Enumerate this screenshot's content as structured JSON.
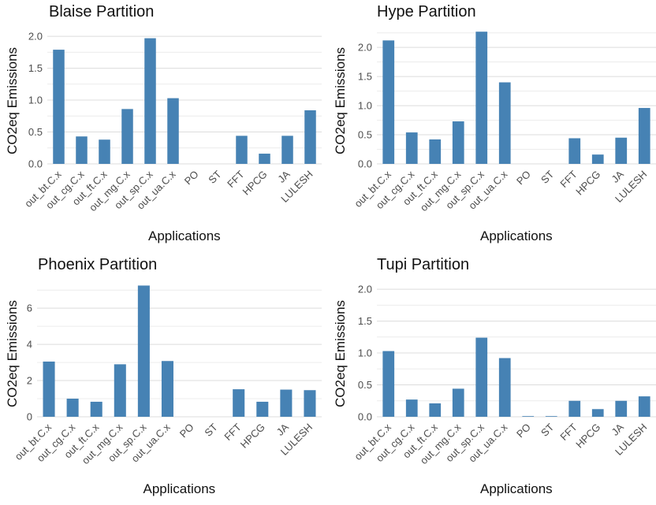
{
  "chart_data": [
    {
      "type": "bar",
      "title": "Blaise Partition",
      "xlabel": "Applications",
      "ylabel": "CO2eq Emissions",
      "categories": [
        "out_bt.C.x",
        "out_cg.C.x",
        "out_ft.C.x",
        "out_mg.C.x",
        "out_sp.C.x",
        "out_ua.C.x",
        "PO",
        "ST",
        "FFT",
        "HPCG",
        "JA",
        "LULESH"
      ],
      "values": [
        1.79,
        0.43,
        0.38,
        0.86,
        1.97,
        1.03,
        0,
        0,
        0.44,
        0.16,
        0.44,
        0.84
      ],
      "ylim": [
        0,
        2.1
      ],
      "yticks": [
        0.0,
        0.5,
        1.0,
        1.5,
        2.0
      ],
      "ytick_labels": [
        "0.0",
        "0.5",
        "1.0",
        "1.5",
        "2.0"
      ],
      "color": "#4682B4",
      "grid": true
    },
    {
      "type": "bar",
      "title": "Hype Partition",
      "xlabel": "Applications",
      "ylabel": "CO2eq Emissions",
      "categories": [
        "out_bt.C.x",
        "out_cg.C.x",
        "out_ft.C.x",
        "out_mg.C.x",
        "out_sp.C.x",
        "out_ua.C.x",
        "PO",
        "ST",
        "FFT",
        "HPCG",
        "JA",
        "LULESH"
      ],
      "values": [
        2.12,
        0.54,
        0.42,
        0.73,
        2.27,
        1.4,
        0,
        0,
        0.44,
        0.16,
        0.45,
        0.96
      ],
      "ylim": [
        0,
        2.3
      ],
      "yticks": [
        0.0,
        0.5,
        1.0,
        1.5,
        2.0
      ],
      "ytick_labels": [
        "0.0",
        "0.5",
        "1.0",
        "1.5",
        "2.0"
      ],
      "color": "#4682B4",
      "grid": true
    },
    {
      "type": "bar",
      "title": "Phoenix Partition",
      "xlabel": "Applications",
      "ylabel": "CO2eq Emissions",
      "categories": [
        "out_bt.C.x",
        "out_cg.C.x",
        "out_ft.C.x",
        "out_mg.C.x",
        "out_sp.C.x",
        "out_ua.C.x",
        "PO",
        "ST",
        "FFT",
        "HPCG",
        "JA",
        "LULESH"
      ],
      "values": [
        3.05,
        1.0,
        0.83,
        2.9,
        7.25,
        3.08,
        0,
        0,
        1.52,
        0.83,
        1.5,
        1.47
      ],
      "ylim": [
        0,
        7.4
      ],
      "yticks": [
        0,
        2,
        4,
        6
      ],
      "ytick_labels": [
        "0",
        "2",
        "4",
        "6"
      ],
      "color": "#4682B4",
      "grid": true
    },
    {
      "type": "bar",
      "title": "Tupi Partition",
      "xlabel": "Applications",
      "ylabel": "CO2eq Emissions",
      "categories": [
        "out_bt.C.x",
        "out_cg.C.x",
        "out_ft.C.x",
        "out_mg.C.x",
        "out_sp.C.x",
        "out_ua.C.x",
        "PO",
        "ST",
        "FFT",
        "HPCG",
        "JA",
        "LULESH"
      ],
      "values": [
        1.03,
        0.27,
        0.21,
        0.44,
        1.24,
        0.92,
        0.01,
        0.01,
        0.25,
        0.12,
        0.25,
        0.32
      ],
      "ylim": [
        0,
        2.1
      ],
      "yticks": [
        0.0,
        0.5,
        1.0,
        1.5,
        2.0
      ],
      "ytick_labels": [
        "0.0",
        "0.5",
        "1.0",
        "1.5",
        "2.0"
      ],
      "color": "#4682B4",
      "grid": true
    }
  ]
}
